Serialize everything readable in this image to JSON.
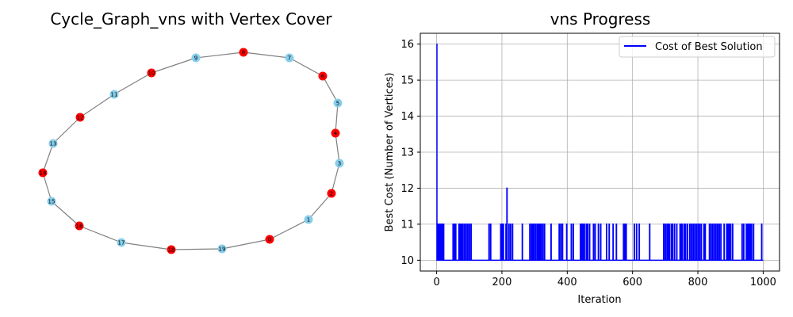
{
  "graph_panel": {
    "title": "Cycle_Graph_vns with Vertex Cover",
    "colors": {
      "cover": "#ff0000",
      "not_cover": "#87ceeb",
      "edge": "#808080"
    }
  },
  "chart_data": [
    {
      "type": "network",
      "title": "Cycle_Graph_vns with Vertex Cover",
      "nodes": [
        {
          "id": "0",
          "cover": true
        },
        {
          "id": "1",
          "cover": false
        },
        {
          "id": "2",
          "cover": true
        },
        {
          "id": "3",
          "cover": false
        },
        {
          "id": "4",
          "cover": true
        },
        {
          "id": "5",
          "cover": false
        },
        {
          "id": "6",
          "cover": true
        },
        {
          "id": "7",
          "cover": false
        },
        {
          "id": "8",
          "cover": true
        },
        {
          "id": "9",
          "cover": false
        },
        {
          "id": "10",
          "cover": true
        },
        {
          "id": "11",
          "cover": false
        },
        {
          "id": "12",
          "cover": true
        },
        {
          "id": "13",
          "cover": false
        },
        {
          "id": "14",
          "cover": true
        },
        {
          "id": "15",
          "cover": false
        },
        {
          "id": "16",
          "cover": true
        },
        {
          "id": "17",
          "cover": false
        },
        {
          "id": "18",
          "cover": true
        },
        {
          "id": "19",
          "cover": false
        }
      ],
      "edges": [
        [
          "0",
          "1"
        ],
        [
          "1",
          "2"
        ],
        [
          "2",
          "3"
        ],
        [
          "3",
          "4"
        ],
        [
          "4",
          "5"
        ],
        [
          "5",
          "6"
        ],
        [
          "6",
          "7"
        ],
        [
          "7",
          "8"
        ],
        [
          "8",
          "9"
        ],
        [
          "9",
          "10"
        ],
        [
          "10",
          "11"
        ],
        [
          "11",
          "12"
        ],
        [
          "12",
          "13"
        ],
        [
          "13",
          "14"
        ],
        [
          "14",
          "15"
        ],
        [
          "15",
          "16"
        ],
        [
          "16",
          "17"
        ],
        [
          "17",
          "18"
        ],
        [
          "18",
          "19"
        ],
        [
          "19",
          "0"
        ]
      ]
    },
    {
      "type": "line",
      "title": "vns Progress",
      "xlabel": "Iteration",
      "ylabel": "Best Cost (Number of Vertices)",
      "xlim": [
        -50,
        1050
      ],
      "ylim": [
        9.7,
        16.3
      ],
      "xticks": [
        0,
        200,
        400,
        600,
        800,
        1000
      ],
      "yticks": [
        10,
        11,
        12,
        13,
        14,
        15,
        16
      ],
      "grid": true,
      "legend_position": "upper right",
      "series": [
        {
          "name": "Cost of Best Solution",
          "color": "#0000ff",
          "start_value": 16,
          "first_drop_iteration": 1,
          "last_iteration": 1000,
          "base_value": 10,
          "spikes_to_11": [
            3,
            6,
            9,
            12,
            15,
            18,
            21,
            50,
            54,
            58,
            68,
            72,
            76,
            80,
            85,
            90,
            95,
            100,
            105,
            160,
            165,
            196,
            200,
            204,
            212,
            221,
            226,
            232,
            262,
            285,
            290,
            294,
            298,
            303,
            308,
            312,
            316,
            320,
            325,
            330,
            350,
            375,
            380,
            385,
            398,
            412,
            418,
            440,
            444,
            448,
            452,
            458,
            462,
            468,
            480,
            485,
            495,
            502,
            520,
            528,
            540,
            550,
            572,
            576,
            580,
            605,
            612,
            620,
            652,
            695,
            700,
            705,
            708,
            712,
            718,
            722,
            728,
            735,
            745,
            748,
            752,
            758,
            762,
            768,
            775,
            780,
            785,
            790,
            795,
            800,
            805,
            810,
            818,
            822,
            835,
            840,
            845,
            850,
            855,
            860,
            865,
            870,
            880,
            888,
            892,
            896,
            900,
            906,
            935,
            940,
            948,
            952,
            956,
            960,
            964,
            970,
            995
          ],
          "spike_to_12": 215
        }
      ]
    }
  ]
}
